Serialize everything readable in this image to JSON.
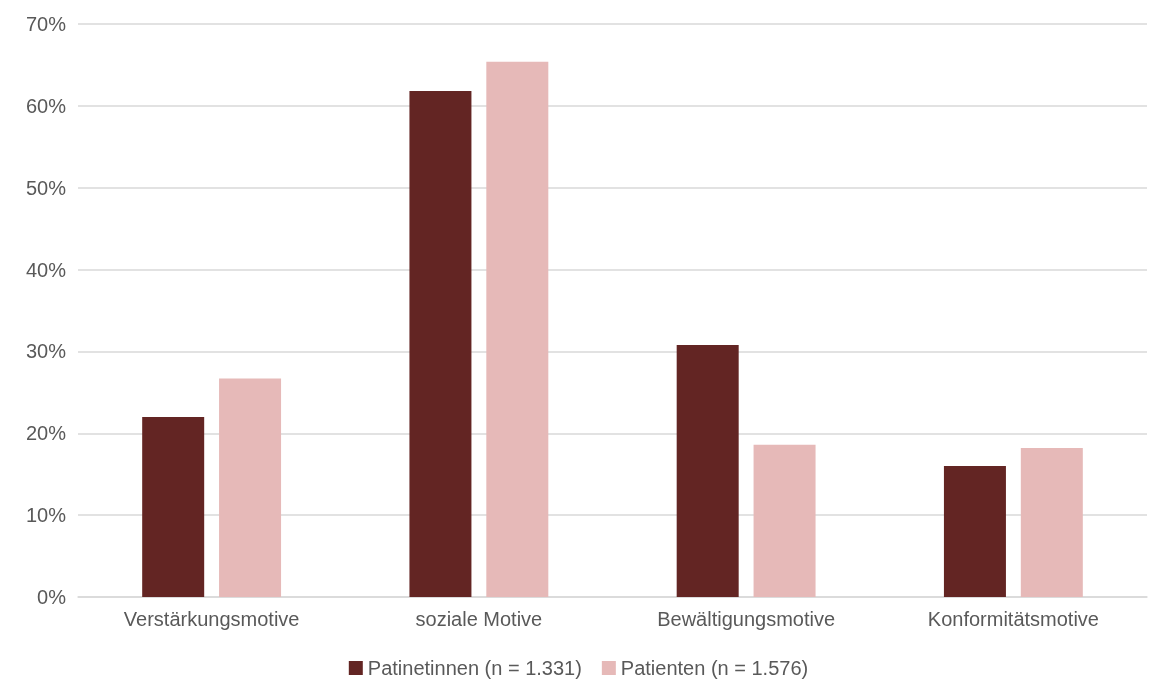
{
  "chart_data": {
    "type": "bar",
    "categories": [
      "Verstärkungsmotive",
      "soziale Motive",
      "Bewältigungsmotive",
      "Konformitätsmotive"
    ],
    "series": [
      {
        "name": "Patinetinnen (n = 1.331)",
        "color": "#632523",
        "values": [
          22.0,
          61.8,
          30.8,
          16.0
        ]
      },
      {
        "name": "Patienten (n = 1.576)",
        "color": "#e6b9b8",
        "values": [
          26.7,
          65.4,
          18.6,
          18.2
        ]
      }
    ],
    "ylim": [
      0,
      70
    ],
    "yticks": [
      {
        "value": 0,
        "label": "0%"
      },
      {
        "value": 10,
        "label": "10%"
      },
      {
        "value": 20,
        "label": "20%"
      },
      {
        "value": 30,
        "label": "30%"
      },
      {
        "value": 40,
        "label": "40%"
      },
      {
        "value": 50,
        "label": "50%"
      },
      {
        "value": 60,
        "label": "60%"
      },
      {
        "value": 70,
        "label": "70%"
      }
    ],
    "grid": "y",
    "legend": "bottom"
  }
}
